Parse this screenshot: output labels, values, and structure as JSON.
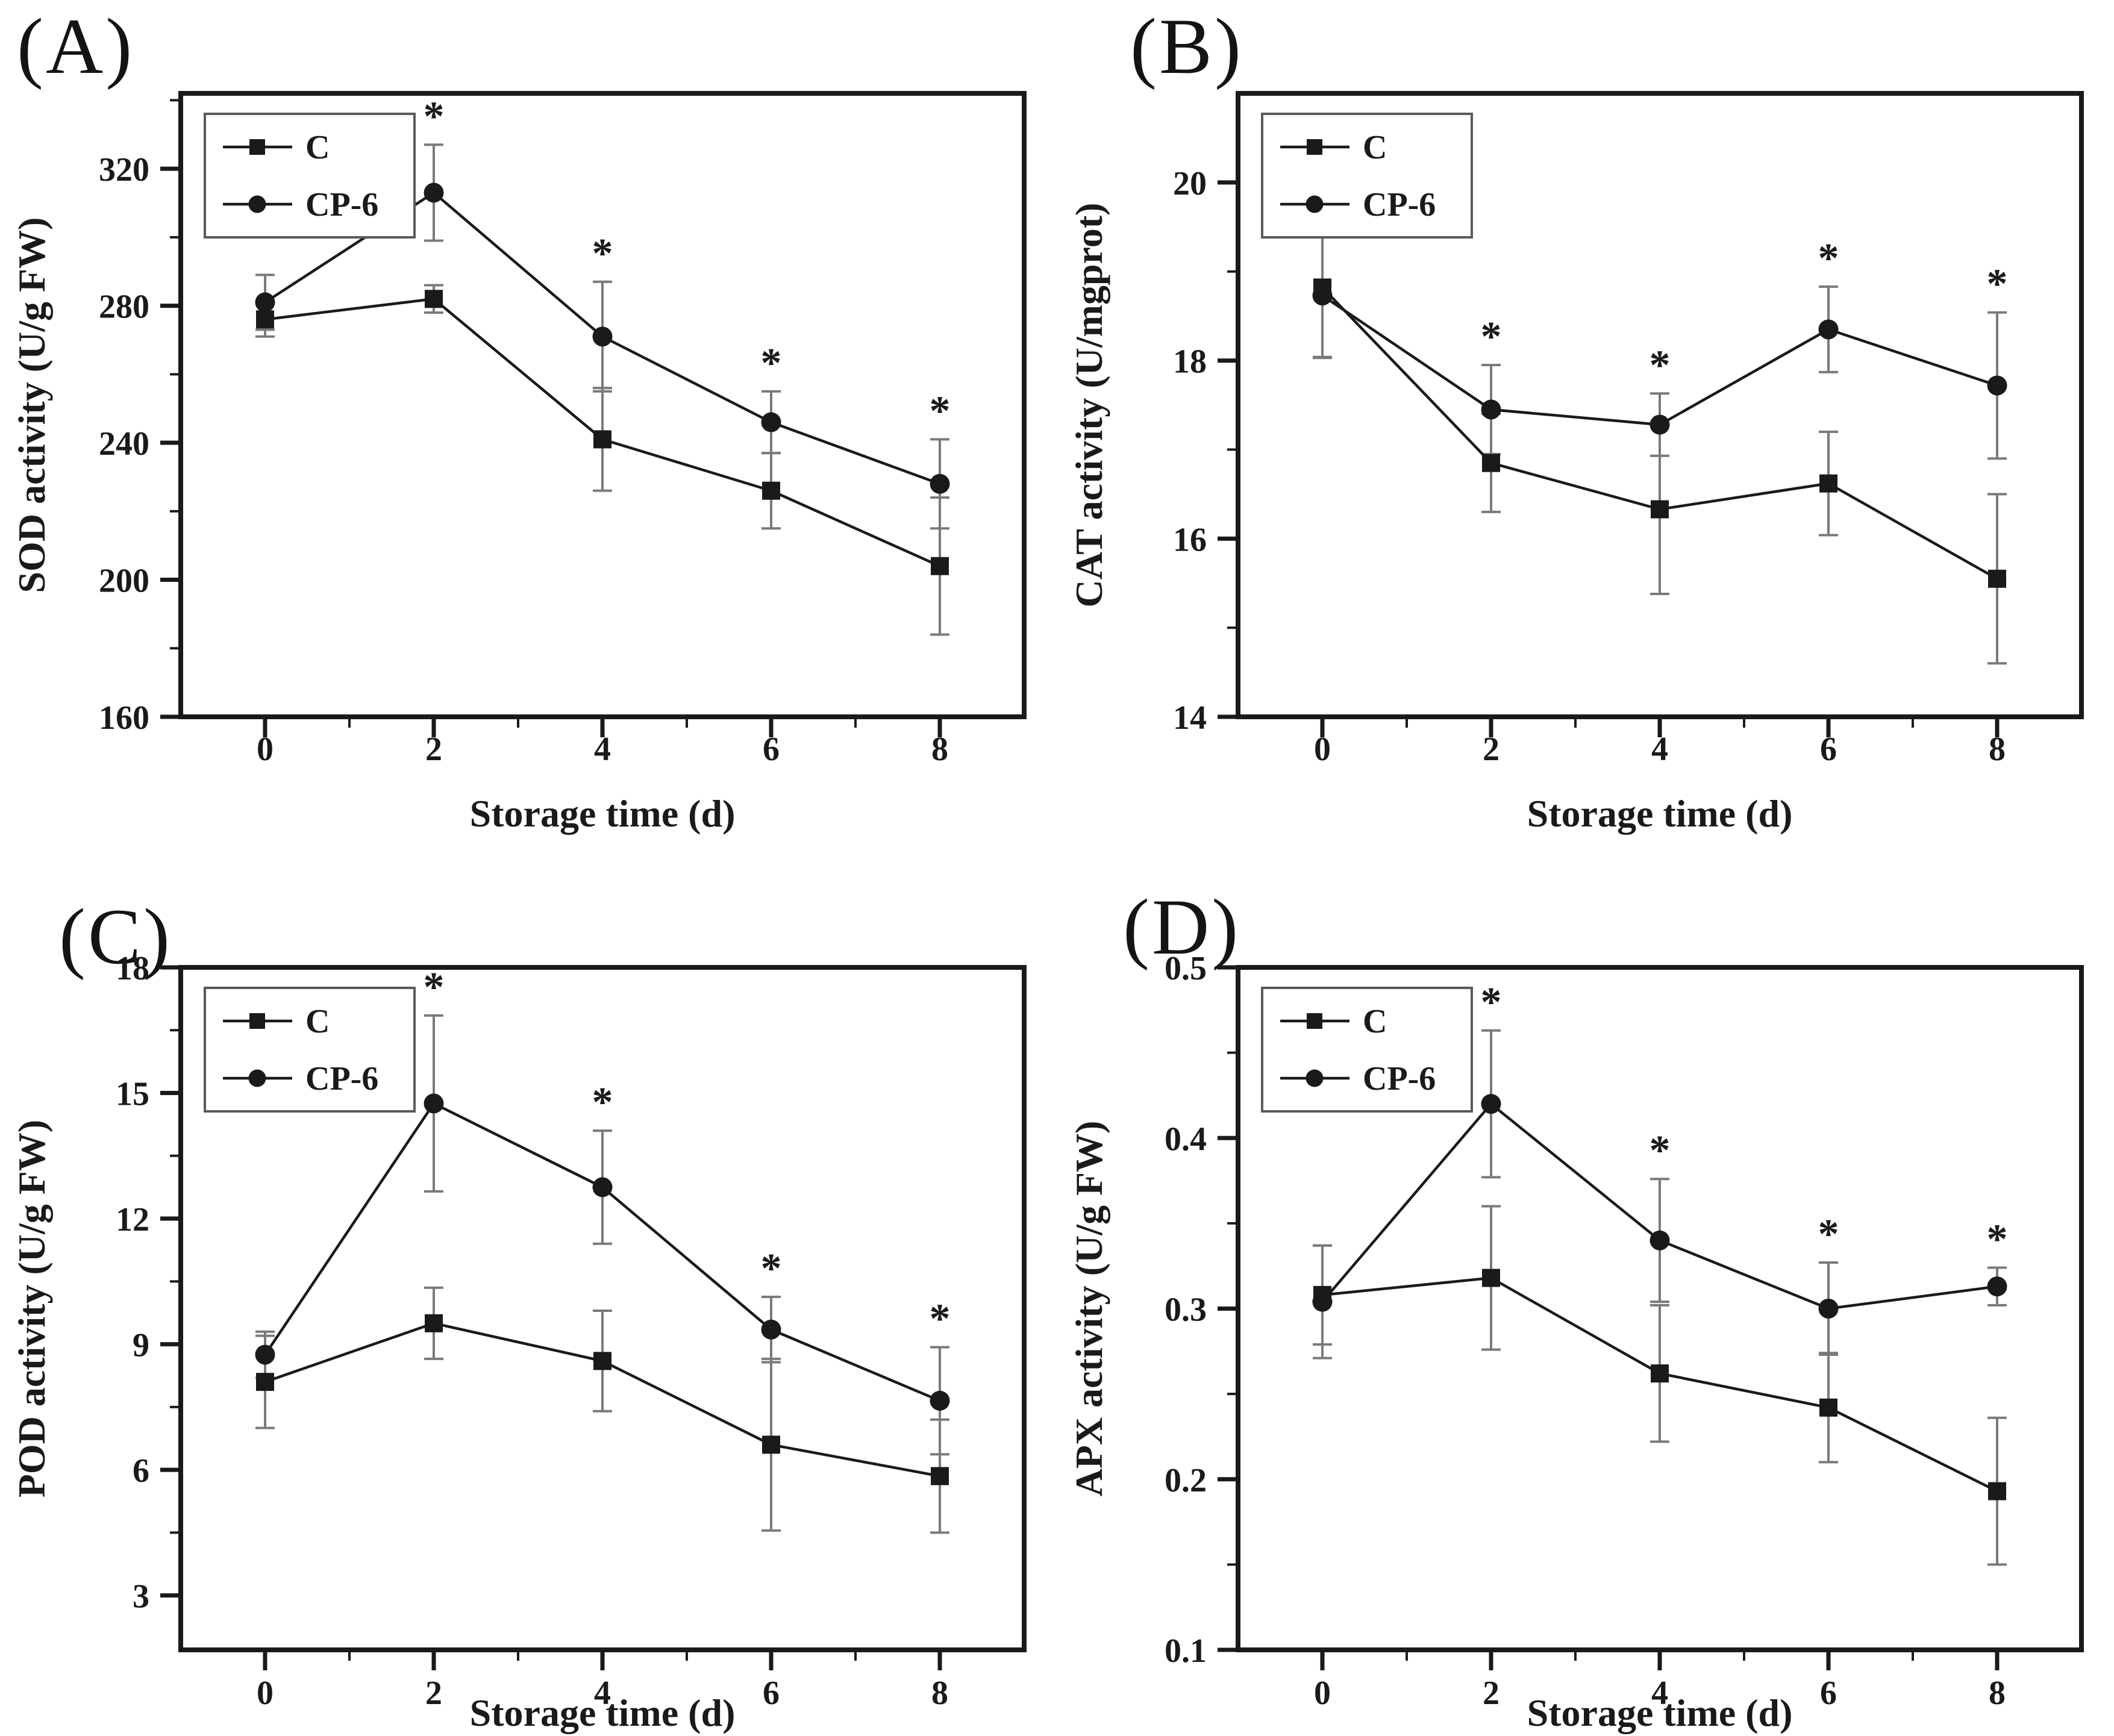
{
  "figure": {
    "ink_color": "#1a1a1a",
    "frame_color": "#1a1a1a",
    "error_bar_color": "#7a7a7a",
    "background": "#ffffff",
    "legend_border_color": "#5a5a5a"
  },
  "chart_data": [
    {
      "type": "line",
      "panel_label": "(A)",
      "xlabel": "Storage time (d)",
      "ylabel": "SOD activity (U/g FW)",
      "x": [
        0,
        2,
        4,
        6,
        8
      ],
      "xtick_labels": [
        "0",
        "2",
        "4",
        "6",
        "8"
      ],
      "x_minor": [
        1,
        3,
        5,
        7
      ],
      "xlim": [
        -1,
        9
      ],
      "ylim": [
        160,
        342
      ],
      "yticks": [
        {
          "value": 160,
          "label": "160"
        },
        {
          "value": 200,
          "label": "200"
        },
        {
          "value": 240,
          "label": "240"
        },
        {
          "value": 280,
          "label": "280"
        },
        {
          "value": 320,
          "label": "320"
        }
      ],
      "y_minor": [
        180,
        220,
        260,
        300,
        340
      ],
      "series": [
        {
          "name": "C",
          "marker": "square",
          "values": [
            276,
            282,
            241,
            226,
            204
          ],
          "err": [
            5,
            4,
            15,
            11,
            20
          ]
        },
        {
          "name": "CP-6",
          "marker": "circle",
          "values": [
            281,
            313,
            271,
            246,
            228
          ],
          "err": [
            8,
            14,
            16,
            9,
            13
          ]
        }
      ],
      "significance": {
        "symbol": "*",
        "x": [
          2,
          4,
          6,
          8
        ],
        "series": "CP-6"
      },
      "legend_position": "top-left"
    },
    {
      "type": "line",
      "panel_label": "(B)",
      "xlabel": "Storage time (d)",
      "ylabel": "CAT activity (U/mgprot)",
      "x": [
        0,
        2,
        4,
        6,
        8
      ],
      "xtick_labels": [
        "0",
        "2",
        "4",
        "6",
        "8"
      ],
      "x_minor": [
        1,
        3,
        5,
        7
      ],
      "xlim": [
        -1,
        9
      ],
      "ylim": [
        14,
        21
      ],
      "yticks": [
        {
          "value": 14,
          "label": "14"
        },
        {
          "value": 16,
          "label": "16"
        },
        {
          "value": 18,
          "label": "18"
        },
        {
          "value": 20,
          "label": "20"
        }
      ],
      "y_minor": [
        15,
        17,
        19
      ],
      "series": [
        {
          "name": "C",
          "marker": "square",
          "values": [
            18.82,
            16.85,
            16.33,
            16.62,
            15.55
          ],
          "err": [
            0.78,
            0.55,
            0.95,
            0.58,
            0.95
          ]
        },
        {
          "name": "CP-6",
          "marker": "circle",
          "values": [
            18.73,
            17.45,
            17.28,
            18.35,
            17.72
          ],
          "err": [
            0.7,
            0.5,
            0.35,
            0.48,
            0.82
          ]
        }
      ],
      "significance": {
        "symbol": "*",
        "x": [
          2,
          4,
          6,
          8
        ],
        "series": "CP-6"
      },
      "legend_position": "top-left"
    },
    {
      "type": "line",
      "panel_label": "(C)",
      "xlabel": "Storage time (d)",
      "ylabel": "POD activity (U/g FW)",
      "x": [
        0,
        2,
        4,
        6,
        8
      ],
      "xtick_labels": [
        "0",
        "2",
        "4",
        "6",
        "8"
      ],
      "x_minor": [
        1,
        3,
        5,
        7
      ],
      "xlim": [
        -1,
        9
      ],
      "ylim": [
        1.7,
        18
      ],
      "yticks": [
        {
          "value": 3,
          "label": "3"
        },
        {
          "value": 6,
          "label": "6"
        },
        {
          "value": 9,
          "label": "9"
        },
        {
          "value": 12,
          "label": "12"
        },
        {
          "value": 15,
          "label": "15"
        },
        {
          "value": 18,
          "label": "18"
        }
      ],
      "y_minor": [
        4.5,
        7.5,
        10.5,
        13.5,
        16.5
      ],
      "series": [
        {
          "name": "C",
          "marker": "square",
          "values": [
            8.1,
            9.5,
            8.6,
            6.6,
            5.85
          ],
          "err": [
            1.1,
            0.85,
            1.2,
            2.05,
            1.35
          ]
        },
        {
          "name": "CP-6",
          "marker": "circle",
          "values": [
            8.75,
            14.75,
            12.75,
            9.35,
            7.65
          ],
          "err": [
            0.55,
            2.1,
            1.35,
            0.78,
            1.28
          ]
        }
      ],
      "significance": {
        "symbol": "*",
        "x": [
          2,
          4,
          6,
          8
        ],
        "series": "CP-6"
      },
      "legend_position": "top-left"
    },
    {
      "type": "line",
      "panel_label": "(D)",
      "xlabel": "Storage time (d)",
      "ylabel": "APX activity (U/g FW)",
      "x": [
        0,
        2,
        4,
        6,
        8
      ],
      "xtick_labels": [
        "0",
        "2",
        "4",
        "6",
        "8"
      ],
      "x_minor": [
        1,
        3,
        5,
        7
      ],
      "xlim": [
        -1,
        9
      ],
      "ylim": [
        0.1,
        0.5
      ],
      "yticks": [
        {
          "value": 0.1,
          "label": "0.1"
        },
        {
          "value": 0.2,
          "label": "0.2"
        },
        {
          "value": 0.3,
          "label": "0.3"
        },
        {
          "value": 0.4,
          "label": "0.4"
        },
        {
          "value": 0.5,
          "label": "0.5"
        }
      ],
      "y_minor": [
        0.15,
        0.25,
        0.35,
        0.45
      ],
      "series": [
        {
          "name": "C",
          "marker": "square",
          "values": [
            0.308,
            0.318,
            0.262,
            0.242,
            0.193
          ],
          "err": [
            0.029,
            0.042,
            0.04,
            0.032,
            0.043
          ]
        },
        {
          "name": "CP-6",
          "marker": "circle",
          "values": [
            0.304,
            0.42,
            0.34,
            0.3,
            0.313
          ],
          "err": [
            0.033,
            0.043,
            0.036,
            0.027,
            0.011
          ]
        }
      ],
      "significance": {
        "symbol": "*",
        "x": [
          2,
          4,
          6,
          8
        ],
        "series": "CP-6"
      },
      "legend_position": "top-left"
    }
  ]
}
